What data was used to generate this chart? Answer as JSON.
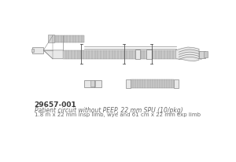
{
  "background_color": "#ffffff",
  "part_number": "29657-001",
  "line1": "Patient circuit without PEEP, 22 mm SPU (10/pkg)",
  "line2": "1.8 m x 22 mm insp limb, wye and 61 cm x 22 mm exp limb",
  "text_color_bold": "#3a3a3a",
  "text_color_normal": "#6a6a6a",
  "part_number_fontsize": 6.5,
  "line1_fontsize": 5.5,
  "line2_fontsize": 5.0,
  "edge_color": "#888888",
  "fill_light": "#e8e8e8",
  "fill_corr": "#c8c8c8",
  "fill_med": "#d4d4d4",
  "fill_dark": "#aaaaaa"
}
